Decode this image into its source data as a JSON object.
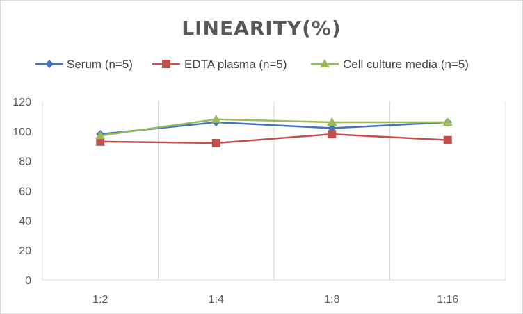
{
  "chart_data": {
    "type": "line",
    "title": "LINEARITY(%)",
    "xlabel": "",
    "ylabel": "",
    "categories": [
      "1:2",
      "1:4",
      "1:8",
      "1:16"
    ],
    "ylim": [
      0,
      120
    ],
    "yticks": [
      0,
      20,
      40,
      60,
      80,
      100,
      120
    ],
    "grid": "vertical",
    "legend_position": "top",
    "series": [
      {
        "name": "Serum (n=5)",
        "values": [
          98,
          106,
          102,
          106
        ],
        "color": "#4472c4",
        "marker": "diamond"
      },
      {
        "name": "EDTA plasma (n=5)",
        "values": [
          93,
          92,
          98,
          94
        ],
        "color": "#c0504d",
        "marker": "square"
      },
      {
        "name": "Cell culture media (n=5)",
        "values": [
          97,
          108,
          106,
          106
        ],
        "color": "#9bbb59",
        "marker": "triangle"
      }
    ]
  }
}
